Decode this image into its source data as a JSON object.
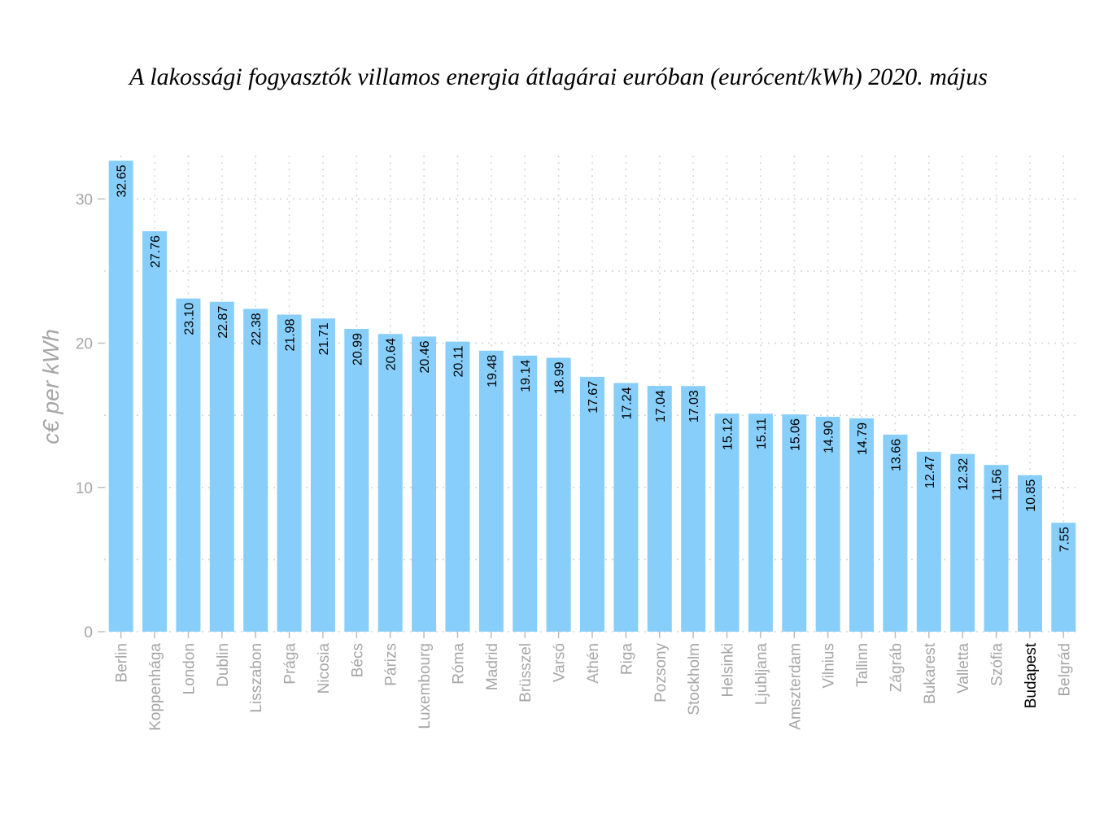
{
  "chart_data": {
    "type": "bar",
    "title": "A lakossági fogyasztók villamos energia átlagárai euróban (eurócent/kWh) 2020. május",
    "ylabel": "c€ per kWh",
    "xlabel": "",
    "ylim": [
      0,
      33
    ],
    "yticks": [
      0,
      10,
      20,
      30
    ],
    "grid": true,
    "bar_color": "#87cefa",
    "highlight_color": "#000000",
    "highlight_category": "Budapest",
    "categories": [
      "Berlin",
      "Koppenhága",
      "London",
      "Dublin",
      "Lisszabon",
      "Prága",
      "Nicosia",
      "Bécs",
      "Párizs",
      "Luxembourg",
      "Róma",
      "Madrid",
      "Brüsszel",
      "Varsó",
      "Athén",
      "Riga",
      "Pozsony",
      "Stockholm",
      "Helsinki",
      "Ljubljana",
      "Amszterdam",
      "Vilnius",
      "Tallinn",
      "Zágráb",
      "Bukarest",
      "Valletta",
      "Szófia",
      "Budapest",
      "Belgrád"
    ],
    "values": [
      32.65,
      27.76,
      23.1,
      22.87,
      22.38,
      21.98,
      21.71,
      20.99,
      20.64,
      20.46,
      20.11,
      19.48,
      19.14,
      18.99,
      17.67,
      17.24,
      17.04,
      17.03,
      15.12,
      15.11,
      15.06,
      14.9,
      14.79,
      13.66,
      12.47,
      12.32,
      11.56,
      10.85,
      7.55
    ],
    "value_labels": [
      "32.65",
      "27.76",
      "23.10",
      "22.87",
      "22.38",
      "21.98",
      "21.71",
      "20.99",
      "20.64",
      "20.46",
      "20.11",
      "19.48",
      "19.14",
      "18.99",
      "17.67",
      "17.24",
      "17.04",
      "17.03",
      "15.12",
      "15.11",
      "15.06",
      "14.90",
      "14.79",
      "13.66",
      "12.47",
      "12.32",
      "11.56",
      "10.85",
      "7.55"
    ]
  }
}
